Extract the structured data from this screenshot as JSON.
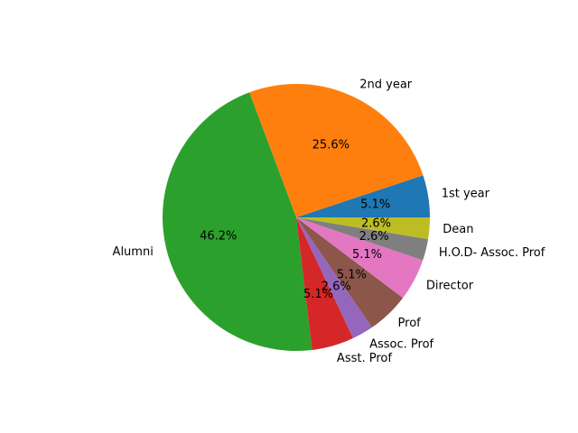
{
  "chart_data": {
    "type": "pie",
    "title": "",
    "start_angle_deg": 0,
    "direction": "counterclockwise",
    "slices": [
      {
        "label": "1st year",
        "percent": 5.1,
        "pct_text": "5.1%",
        "color": "#1f77b4"
      },
      {
        "label": "2nd year",
        "percent": 25.6,
        "pct_text": "25.6%",
        "color": "#ff7f0e"
      },
      {
        "label": "Alumni",
        "percent": 46.2,
        "pct_text": "46.2%",
        "color": "#2ca02c"
      },
      {
        "label": "Asst. Prof",
        "percent": 5.1,
        "pct_text": "5.1%",
        "color": "#d62728"
      },
      {
        "label": "Assoc. Prof",
        "percent": 2.6,
        "pct_text": "2.6%",
        "color": "#9467bd"
      },
      {
        "label": "Prof",
        "percent": 5.1,
        "pct_text": "5.1%",
        "color": "#8c564b"
      },
      {
        "label": "Director",
        "percent": 5.1,
        "pct_text": "5.1%",
        "color": "#e377c2"
      },
      {
        "label": "H.O.D- Assoc. Prof",
        "percent": 2.6,
        "pct_text": "2.6%",
        "color": "#7f7f7f"
      },
      {
        "label": "Dean",
        "percent": 2.6,
        "pct_text": "2.6%",
        "color": "#bcbd22"
      }
    ]
  }
}
